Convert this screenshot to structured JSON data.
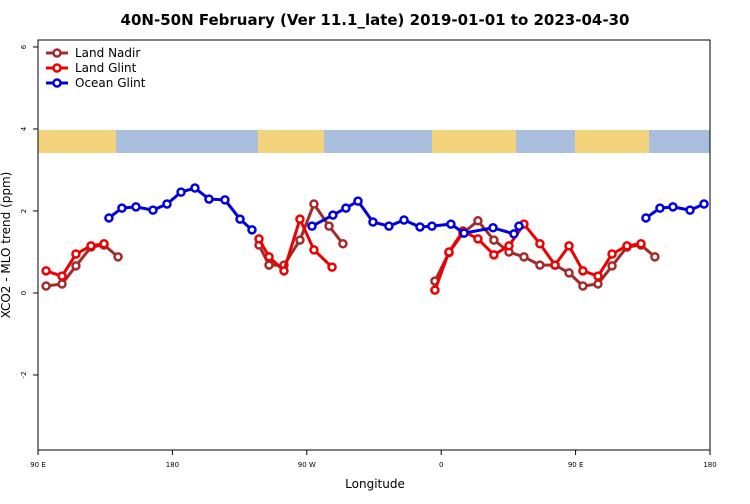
{
  "chart_data": {
    "type": "line",
    "title": "40N-50N February (Ver 11.1_late)   2019-01-01 to 2023-04-30",
    "x_label": "Longitude",
    "y_label": "XCO2 - MLO trend (ppm)",
    "xlim": [
      90,
      540
    ],
    "xticks": [
      {
        "value": 90,
        "label": "90 E"
      },
      180,
      {
        "value": 270,
        "label": "90 W"
      },
      {
        "value": 360,
        "label": "0"
      },
      {
        "value": 450,
        "label": "90 E"
      },
      {
        "value": 540,
        "label": "180"
      }
    ],
    "ylim": [
      -3.83,
      6.17
    ],
    "yticks": [
      -2,
      0,
      2,
      4,
      6
    ],
    "legend": "top-left",
    "series": [
      {
        "name": "Land Nadir",
        "color": "#a52a2a",
        "x": [
          95.4,
          106.1,
          115.4,
          125.5,
          134.2,
          143.6,
          null,
          238.0,
          244.7,
          254.7,
          265.4,
          274.8,
          284.9,
          294.2,
          null,
          355.8,
          365.2,
          374.6,
          384.6,
          395.3,
          405.4,
          415.4,
          426.1,
          436.2,
          445.6,
          454.9,
          465.0,
          474.4,
          484.4,
          493.8,
          503.1
        ],
        "values": [
          0.17,
          0.22,
          0.66,
          1.12,
          1.17,
          0.88,
          null,
          1.17,
          0.68,
          0.68,
          1.29,
          2.17,
          1.63,
          1.2,
          null,
          0.29,
          0.98,
          1.46,
          1.76,
          1.29,
          1.0,
          0.88,
          0.68,
          0.68,
          0.49,
          0.17,
          0.22,
          0.66,
          1.12,
          1.17,
          0.88
        ]
      },
      {
        "name": "Land Glint",
        "color": "#ee0000",
        "x": [
          95.4,
          106.1,
          115.4,
          125.5,
          134.2,
          null,
          238.0,
          244.7,
          254.7,
          265.4,
          274.8,
          286.9,
          null,
          355.8,
          365.2,
          374.6,
          384.6,
          395.3,
          405.4,
          415.4,
          426.1,
          436.2,
          445.6,
          454.9,
          465.0,
          474.4,
          484.4,
          493.8
        ],
        "values": [
          0.54,
          0.41,
          0.95,
          1.15,
          1.2,
          null,
          1.32,
          0.88,
          0.54,
          1.8,
          1.05,
          0.63,
          null,
          0.07,
          1.0,
          1.51,
          1.32,
          0.93,
          1.15,
          1.68,
          1.2,
          0.68,
          1.15,
          0.54,
          0.41,
          0.95,
          1.15,
          1.2
        ]
      },
      {
        "name": "Ocean Glint",
        "color": "#0000dd",
        "x": [
          137.5,
          146.2,
          155.6,
          167.0,
          176.4,
          185.8,
          195.1,
          204.5,
          215.2,
          225.3,
          233.3,
          null,
          273.5,
          287.5,
          296.2,
          304.3,
          314.3,
          325.0,
          335.1,
          345.8,
          353.8,
          366.5,
          375.3,
          394.7,
          408.7,
          412.1,
          null,
          497.1,
          506.5,
          515.2,
          526.6,
          536.0
        ],
        "values": [
          1.83,
          2.07,
          2.1,
          2.02,
          2.17,
          2.46,
          2.56,
          2.29,
          2.27,
          1.8,
          1.54,
          null,
          1.63,
          1.9,
          2.07,
          2.24,
          1.73,
          1.63,
          1.78,
          1.61,
          1.63,
          1.68,
          1.46,
          1.59,
          1.44,
          1.63,
          null,
          1.83,
          2.07,
          2.1,
          2.02,
          2.17
        ]
      }
    ]
  }
}
